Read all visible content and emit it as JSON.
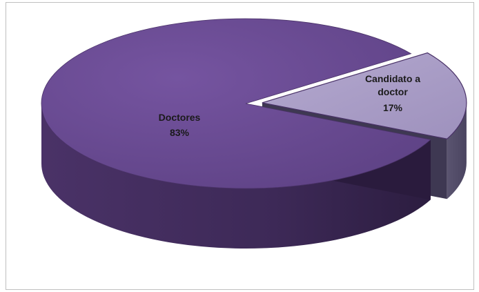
{
  "chart_data": {
    "type": "pie",
    "style": "3d-exploded",
    "title": "",
    "legend": "none",
    "slices": [
      {
        "category": "Doctores",
        "value": 83,
        "value_label": "83%",
        "color": "#6a4a8c"
      },
      {
        "category": "Candidato a doctor",
        "value": 17,
        "value_label": "17%",
        "color": "#a799c3"
      }
    ]
  }
}
